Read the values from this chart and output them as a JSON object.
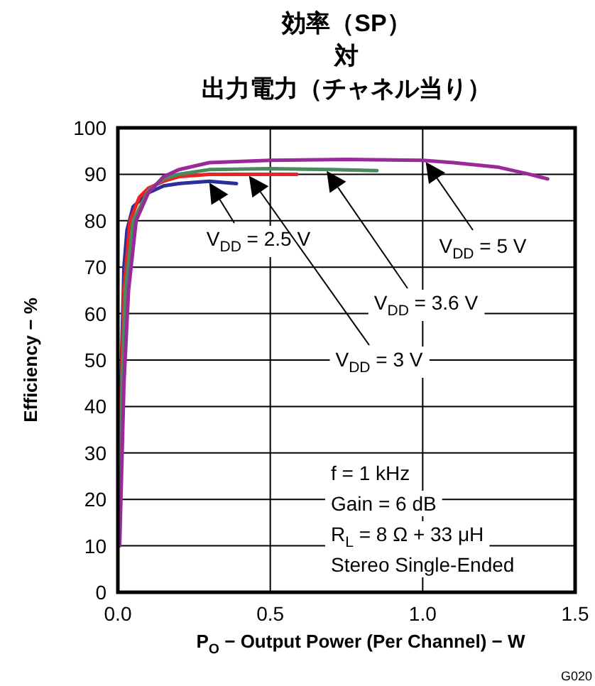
{
  "chart_data": {
    "type": "line",
    "title": "効率（SP）対出力電力（チャネル当り）",
    "xlabel": "P$_{O}$ − Output Power (Per Channel) − W",
    "ylabel": "Efficiency − %",
    "xlim": [
      0,
      1.5
    ],
    "ylim": [
      0,
      100
    ],
    "xticks": [
      {
        "value": 0,
        "label": "0.0"
      },
      {
        "value": 0.5,
        "label": "0.5"
      },
      {
        "value": 1,
        "label": "1.0"
      },
      {
        "value": 1.5,
        "label": "1.5"
      }
    ],
    "yticks": [
      0,
      10,
      20,
      30,
      40,
      50,
      60,
      70,
      80,
      90,
      100
    ],
    "grid": true,
    "legend": false,
    "marker": "none",
    "line_style": "solid",
    "series": [
      {
        "name": "V$_{DD}$ = 2.5 V",
        "color": "#2b2f9a",
        "x": [
          0.003,
          0.01,
          0.02,
          0.03,
          0.05,
          0.1,
          0.15,
          0.2,
          0.3,
          0.389
        ],
        "values": [
          10,
          45,
          70,
          78,
          83,
          86,
          87.5,
          88,
          88.5,
          88
        ]
      },
      {
        "name": "V$_{DD}$ = 3 V",
        "color": "#ee2222",
        "x": [
          0.003,
          0.01,
          0.02,
          0.04,
          0.07,
          0.1,
          0.15,
          0.2,
          0.3,
          0.45,
          0.587
        ],
        "values": [
          10,
          40,
          65,
          80,
          85,
          87,
          88.5,
          89.5,
          90,
          90,
          90
        ]
      },
      {
        "name": "V$_{DD}$ = 3.6 V",
        "color": "#4a8a5f",
        "x": [
          0.004,
          0.012,
          0.025,
          0.05,
          0.1,
          0.15,
          0.2,
          0.3,
          0.5,
          0.7,
          0.85
        ],
        "values": [
          10,
          40,
          65,
          80,
          86.5,
          89,
          90,
          91,
          91.2,
          91,
          90.8
        ]
      },
      {
        "name": "V$_{DD}$ = 5 V",
        "color": "#9a2a9a",
        "x": [
          0.006,
          0.02,
          0.035,
          0.06,
          0.1,
          0.15,
          0.2,
          0.3,
          0.5,
          0.75,
          1.0,
          1.1,
          1.25,
          1.35,
          1.41
        ],
        "values": [
          10,
          45,
          65,
          80,
          86,
          89.5,
          91,
          92.5,
          93,
          93.2,
          93,
          92.5,
          91.5,
          90,
          89
        ]
      }
    ],
    "annotations": [
      "f = 1 kHz",
      "Gain = 6 dB",
      "R$_{L}$ = 8 Ω + 33 μH",
      "Stereo Single-Ended",
      "G020"
    ]
  }
}
